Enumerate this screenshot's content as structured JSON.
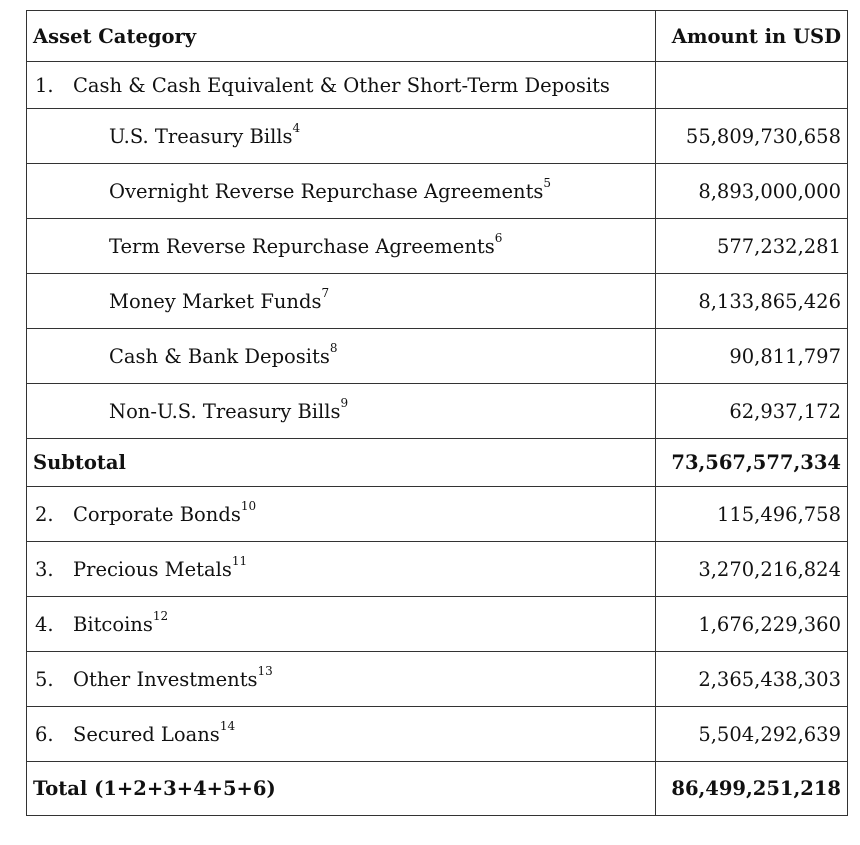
{
  "table": {
    "header": {
      "category": "Asset Category",
      "amount": "Amount in USD"
    },
    "section1": {
      "number": "1.",
      "label": "Cash & Cash Equivalent & Other Short-Term Deposits"
    },
    "items": [
      {
        "label": "U.S. Treasury Bills",
        "note": "4",
        "amount": "55,809,730,658"
      },
      {
        "label": "Overnight Reverse Repurchase Agreements",
        "note": "5",
        "amount": "8,893,000,000"
      },
      {
        "label": "Term Reverse Repurchase Agreements",
        "note": "6",
        "amount": "577,232,281"
      },
      {
        "label": "Money Market Funds",
        "note": "7",
        "amount": "8,133,865,426"
      },
      {
        "label": "Cash & Bank Deposits",
        "note": "8",
        "amount": "90,811,797"
      },
      {
        "label": "Non-U.S. Treasury Bills",
        "note": "9",
        "amount": "62,937,172"
      }
    ],
    "subtotal": {
      "label": "Subtotal",
      "amount": "73,567,577,334"
    },
    "categories": [
      {
        "number": "2.",
        "label": "Corporate Bonds",
        "note": "10",
        "amount": "115,496,758"
      },
      {
        "number": "3.",
        "label": "Precious Metals",
        "note": "11",
        "amount": "3,270,216,824"
      },
      {
        "number": "4.",
        "label": "Bitcoins",
        "note": "12",
        "amount": "1,676,229,360"
      },
      {
        "number": "5.",
        "label": "Other Investments",
        "note": "13",
        "amount": "2,365,438,303"
      },
      {
        "number": "6.",
        "label": "Secured Loans",
        "note": "14",
        "amount": "5,504,292,639"
      }
    ],
    "total": {
      "label": "Total (1+2+3+4+5+6)",
      "amount": "86,499,251,218"
    }
  }
}
